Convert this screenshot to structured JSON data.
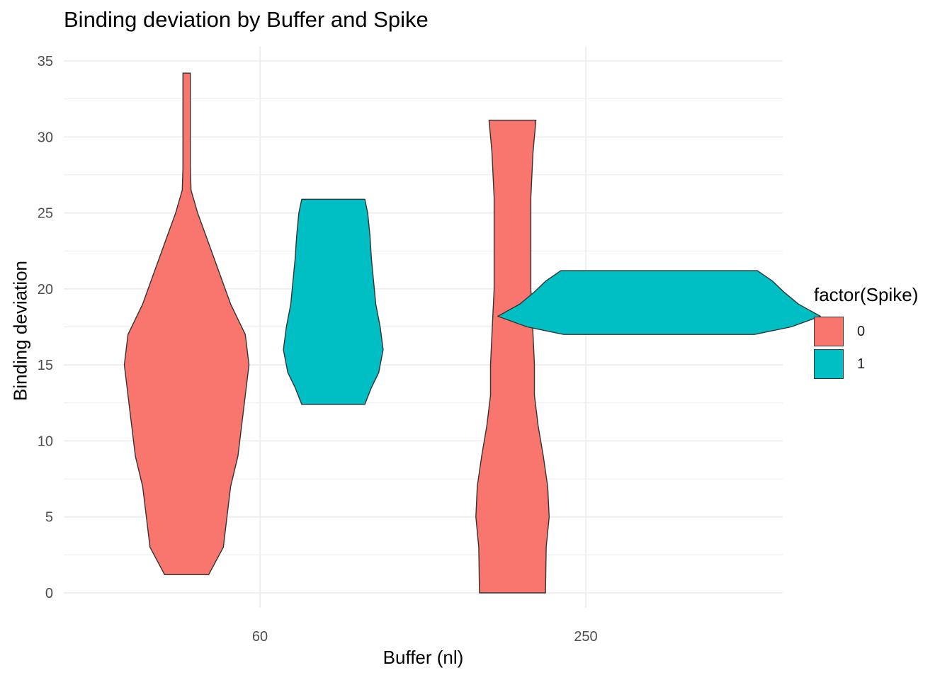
{
  "chart_data": {
    "type": "violin",
    "title": "Binding deviation by Buffer and Spike",
    "xlabel": "Buffer (nl)",
    "ylabel": "Binding deviation",
    "categories": [
      "60",
      "250"
    ],
    "ylim": [
      0,
      35
    ],
    "y_ticks": [
      0,
      5,
      10,
      15,
      20,
      25,
      30,
      35
    ],
    "grid": true,
    "legend": {
      "title": "factor(Spike)",
      "position": "right",
      "entries": [
        "0",
        "1"
      ]
    },
    "colors": {
      "0": "#F8766D",
      "1": "#00BFC4",
      "outline": "#333333",
      "grid": "#EBEBEB"
    },
    "series": [
      {
        "name": "0",
        "category": "60",
        "offset": -0.225,
        "ymin": 1.2,
        "ymax": 34.2,
        "profile": [
          [
            1.2,
            0.3
          ],
          [
            3,
            0.5
          ],
          [
            5,
            0.55
          ],
          [
            7,
            0.6
          ],
          [
            9,
            0.7
          ],
          [
            11,
            0.75
          ],
          [
            13,
            0.8
          ],
          [
            15,
            0.85
          ],
          [
            17,
            0.8
          ],
          [
            19,
            0.6
          ],
          [
            21,
            0.45
          ],
          [
            23,
            0.3
          ],
          [
            25,
            0.15
          ],
          [
            26.5,
            0.06
          ],
          [
            28,
            0.05
          ],
          [
            30,
            0.05
          ],
          [
            32,
            0.05
          ],
          [
            34.2,
            0.05
          ]
        ]
      },
      {
        "name": "1",
        "category": "60",
        "offset": 0.225,
        "ymin": 12.4,
        "ymax": 25.9,
        "profile": [
          [
            12.4,
            0.43
          ],
          [
            13.5,
            0.52
          ],
          [
            14.5,
            0.62
          ],
          [
            16,
            0.68
          ],
          [
            17.5,
            0.64
          ],
          [
            19,
            0.58
          ],
          [
            20.5,
            0.55
          ],
          [
            22,
            0.52
          ],
          [
            23.5,
            0.5
          ],
          [
            25,
            0.47
          ],
          [
            25.9,
            0.43
          ]
        ]
      },
      {
        "name": "0",
        "category": "250",
        "offset": -0.225,
        "ymin": 0,
        "ymax": 31.1,
        "profile": [
          [
            0,
            0.45
          ],
          [
            3,
            0.46
          ],
          [
            5,
            0.5
          ],
          [
            7,
            0.48
          ],
          [
            9,
            0.42
          ],
          [
            11,
            0.35
          ],
          [
            13,
            0.3
          ],
          [
            15,
            0.3
          ],
          [
            17,
            0.28
          ],
          [
            20,
            0.25
          ],
          [
            23,
            0.25
          ],
          [
            26,
            0.25
          ],
          [
            29,
            0.28
          ],
          [
            31.1,
            0.32
          ]
        ]
      },
      {
        "name": "1",
        "category": "250",
        "offset": 0.225,
        "ymin": 17,
        "ymax": 21.2,
        "profile": [
          [
            17,
            1.3
          ],
          [
            17.5,
            1.8
          ],
          [
            18.2,
            2.2
          ],
          [
            19.0,
            1.9
          ],
          [
            19.8,
            1.7
          ],
          [
            20.5,
            1.55
          ],
          [
            21.2,
            1.34
          ]
        ]
      }
    ]
  }
}
